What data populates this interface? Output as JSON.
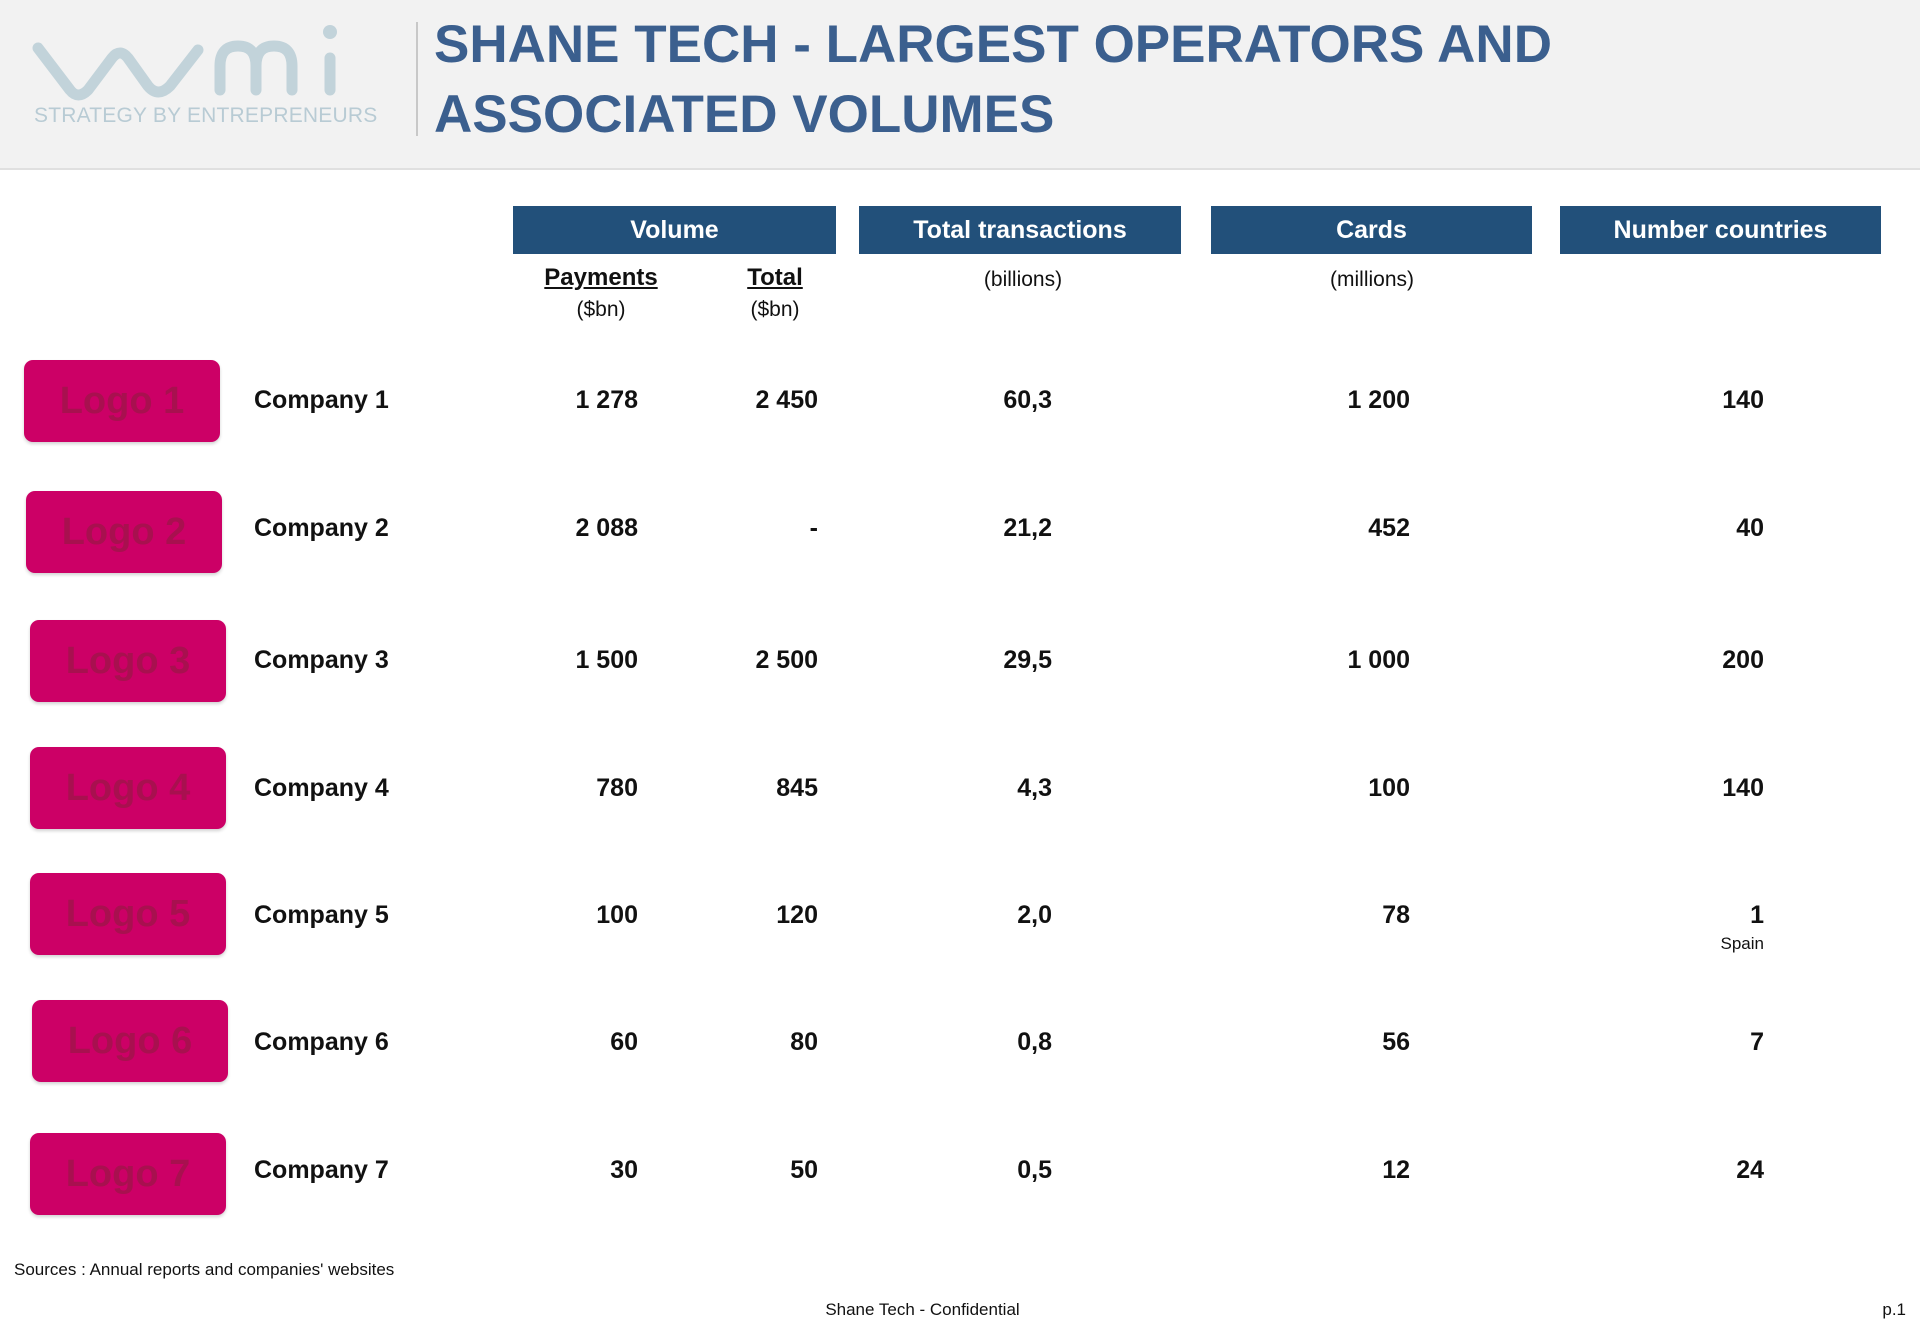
{
  "header": {
    "logo_tagline": "STRATEGY BY ENTREPRENEURS",
    "title": "SHANE TECH - LARGEST OPERATORS AND ASSOCIATED VOLUMES"
  },
  "columns": {
    "volume": "Volume",
    "payments": "Payments",
    "payments_unit": "($bn)",
    "total": "Total",
    "total_unit": "($bn)",
    "transactions": "Total transactions",
    "transactions_unit": "(billions)",
    "cards": "Cards",
    "cards_unit": "(millions)",
    "countries": "Number countries"
  },
  "rows": [
    {
      "logo": "Logo 1",
      "company": "Company 1",
      "payments": "1 278",
      "total": "2 450",
      "transactions": "60,3",
      "cards": "1 200",
      "countries": "140",
      "note": ""
    },
    {
      "logo": "Logo 2",
      "company": "Company 2",
      "payments": "2 088",
      "total": "-",
      "transactions": "21,2",
      "cards": "452",
      "countries": "40",
      "note": ""
    },
    {
      "logo": "Logo 3",
      "company": "Company 3",
      "payments": "1 500",
      "total": "2 500",
      "transactions": "29,5",
      "cards": "1 000",
      "countries": "200",
      "note": ""
    },
    {
      "logo": "Logo 4",
      "company": "Company 4",
      "payments": "780",
      "total": "845",
      "transactions": "4,3",
      "cards": "100",
      "countries": "140",
      "note": ""
    },
    {
      "logo": "Logo 5",
      "company": "Company 5",
      "payments": "100",
      "total": "120",
      "transactions": "2,0",
      "cards": "78",
      "countries": "1",
      "note": "Spain"
    },
    {
      "logo": "Logo 6",
      "company": "Company 6",
      "payments": "60",
      "total": "80",
      "transactions": "0,8",
      "cards": "56",
      "countries": "7",
      "note": ""
    },
    {
      "logo": "Logo 7",
      "company": "Company 7",
      "payments": "30",
      "total": "50",
      "transactions": "0,5",
      "cards": "12",
      "countries": "24",
      "note": ""
    }
  ],
  "footer": {
    "sources": "Sources : Annual reports and companies' websites",
    "confidential": "Shane Tech - Confidential",
    "page": "p.1"
  },
  "colors": {
    "title": "#3b5f8e",
    "header_bar": "#22507a",
    "logo_button": "#cc0066"
  }
}
